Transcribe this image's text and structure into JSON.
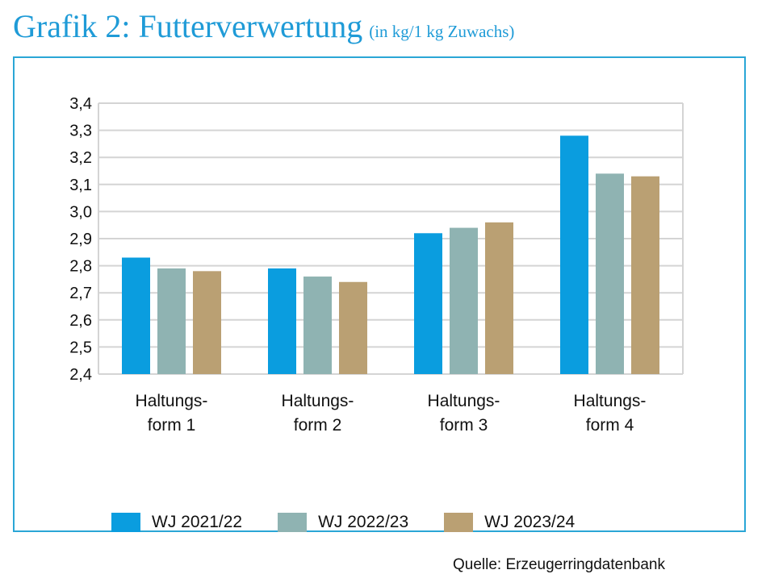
{
  "title": {
    "main": "Grafik 2: Futterverwertung",
    "sub": "(in kg/1 kg Zuwachs)"
  },
  "source": "Quelle: Erzeugerringdatenbank",
  "colors": {
    "title": "#1f9bd7",
    "frame": "#2aa6d6",
    "grid": "#d4d4d4",
    "series": [
      "#0a9ddf",
      "#8fb3b2",
      "#baa073"
    ]
  },
  "chart_data": {
    "type": "bar",
    "title": "Futterverwertung (in kg/1 kg Zuwachs)",
    "xlabel": "",
    "ylabel": "",
    "ylim": [
      2.4,
      3.4
    ],
    "yticks": [
      "2,4",
      "2,5",
      "2,6",
      "2,7",
      "2,8",
      "2,9",
      "3,0",
      "3,1",
      "3,2",
      "3,3",
      "3,4"
    ],
    "categories": [
      [
        "Haltungs-",
        "form 1"
      ],
      [
        "Haltungs-",
        "form 2"
      ],
      [
        "Haltungs-",
        "form 3"
      ],
      [
        "Haltungs-",
        "form 4"
      ]
    ],
    "series": [
      {
        "name": "WJ 2021/22",
        "values": [
          2.83,
          2.79,
          2.92,
          3.28
        ]
      },
      {
        "name": "WJ 2022/23",
        "values": [
          2.79,
          2.76,
          2.94,
          3.14
        ]
      },
      {
        "name": "WJ 2023/24",
        "values": [
          2.78,
          2.74,
          2.96,
          3.13
        ]
      }
    ],
    "grid": true,
    "legend": "bottom"
  }
}
